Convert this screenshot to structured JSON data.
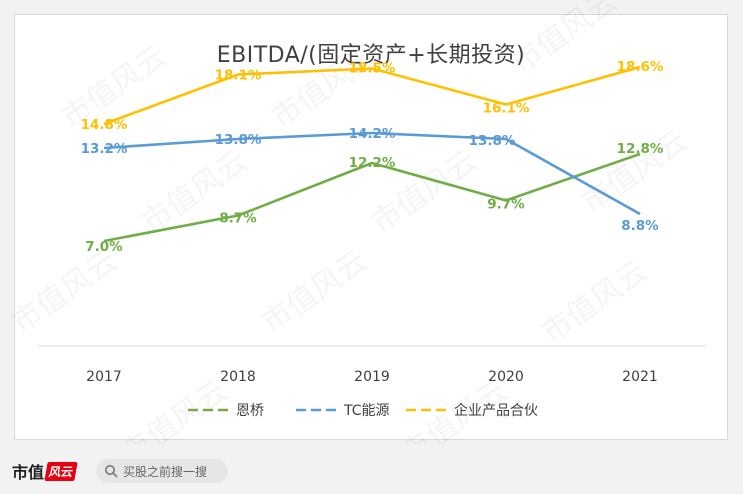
{
  "chart_data": {
    "type": "line",
    "title": "EBITDA/(固定资产+长期投资)",
    "categories": [
      "2017",
      "2018",
      "2019",
      "2020",
      "2021"
    ],
    "series": [
      {
        "name": "恩桥",
        "color": "#70ad47",
        "values": [
          7.0,
          8.7,
          12.2,
          9.7,
          12.8
        ],
        "labels": [
          "7.0%",
          "8.7%",
          "12.2%",
          "9.7%",
          "12.8%"
        ]
      },
      {
        "name": "TC能源",
        "color": "#5b9bd5",
        "values": [
          13.2,
          13.8,
          14.2,
          13.8,
          8.8
        ],
        "labels": [
          "13.2%",
          "13.8%",
          "14.2%",
          "13.8%",
          "8.8%"
        ]
      },
      {
        "name": "企业产品合伙",
        "color": "#ffc000",
        "values": [
          14.8,
          18.1,
          18.5,
          16.1,
          18.6
        ],
        "labels": [
          "14.8%",
          "18.1%",
          "18.5%",
          "16.1%",
          "18.6%"
        ]
      }
    ],
    "ylim": [
      0,
      20
    ],
    "grid": false,
    "legend": "bottom",
    "legend_style": "dashed"
  },
  "footer": {
    "brand_text": "市值",
    "brand_mark": "风云",
    "search_placeholder": "买股之前搜一搜"
  },
  "watermark": "市值风云"
}
